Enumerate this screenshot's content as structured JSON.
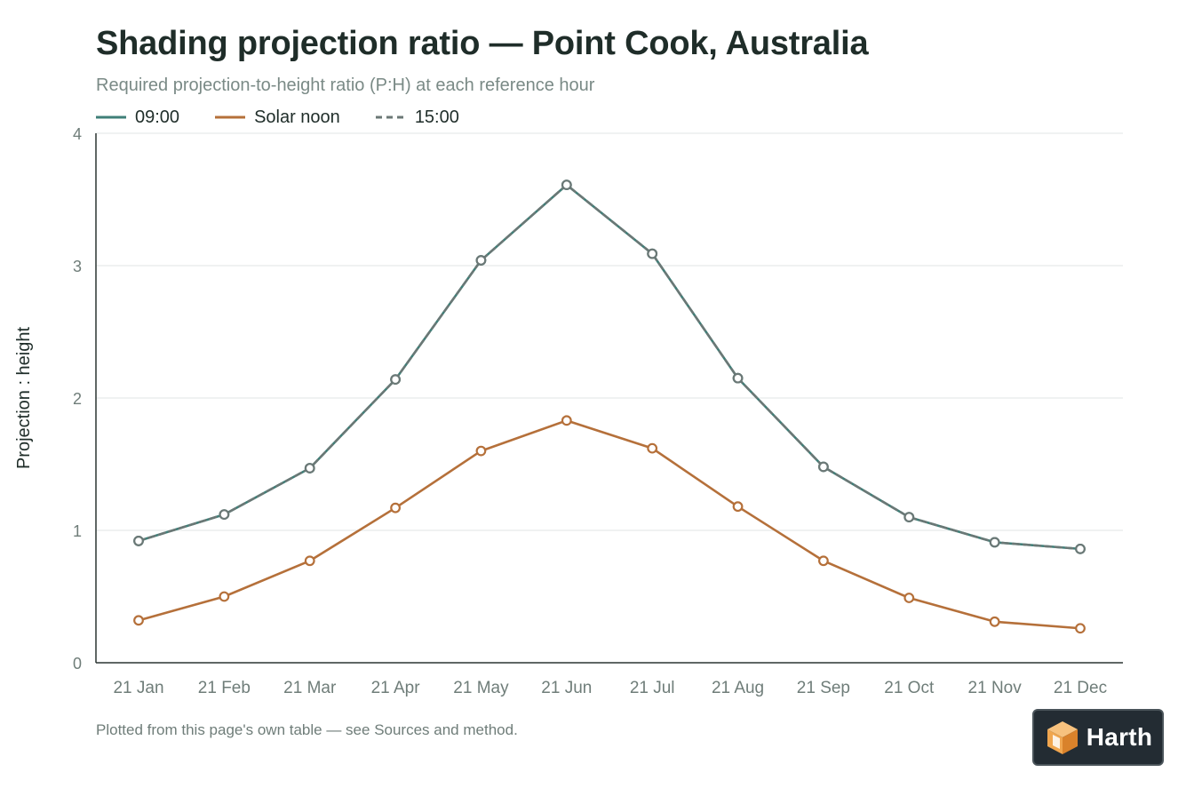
{
  "header": {
    "title": "Shading projection ratio — Point Cook, Australia",
    "subtitle": "Required projection-to-height ratio (P:H) at each reference hour"
  },
  "legend": {
    "items": [
      {
        "label": "09:00",
        "color": "#3f7f78",
        "style": "solid"
      },
      {
        "label": "Solar noon",
        "color": "#b5703a",
        "style": "solid"
      },
      {
        "label": "15:00",
        "color": "#6b7876",
        "style": "dashed"
      }
    ]
  },
  "footer": {
    "note": "Plotted from this page's own table — see Sources and method."
  },
  "logo": {
    "text": "Harth",
    "icon": "cube-icon",
    "colors": {
      "background": "#232c33",
      "cube_light": "#f0a64f",
      "cube_dark": "#d9822b"
    }
  },
  "chart_data": {
    "type": "line",
    "title": "Shading projection ratio — Point Cook, Australia",
    "subtitle": "Required projection-to-height ratio (P:H) at each reference hour",
    "xlabel": "",
    "ylabel": "Projection : height",
    "ylim": [
      0,
      4
    ],
    "yticks": [
      0,
      1,
      2,
      3,
      4
    ],
    "grid": true,
    "legend_position": "top-left",
    "categories": [
      "21 Jan",
      "21 Feb",
      "21 Mar",
      "21 Apr",
      "21 May",
      "21 Jun",
      "21 Jul",
      "21 Aug",
      "21 Sep",
      "21 Oct",
      "21 Nov",
      "21 Dec"
    ],
    "series": [
      {
        "name": "09:00",
        "color": "#3f7f78",
        "dash": false,
        "values": [
          0.92,
          1.12,
          1.47,
          2.14,
          3.04,
          3.61,
          3.09,
          2.15,
          1.48,
          1.1,
          0.91,
          0.86
        ]
      },
      {
        "name": "Solar noon",
        "color": "#b5703a",
        "dash": false,
        "values": [
          0.32,
          0.5,
          0.77,
          1.17,
          1.6,
          1.83,
          1.62,
          1.18,
          0.77,
          0.49,
          0.31,
          0.26
        ]
      },
      {
        "name": "15:00",
        "color": "#6b7876",
        "dash": true,
        "values": [
          0.92,
          1.12,
          1.47,
          2.14,
          3.04,
          3.61,
          3.09,
          2.15,
          1.48,
          1.1,
          0.91,
          0.86
        ]
      }
    ]
  }
}
